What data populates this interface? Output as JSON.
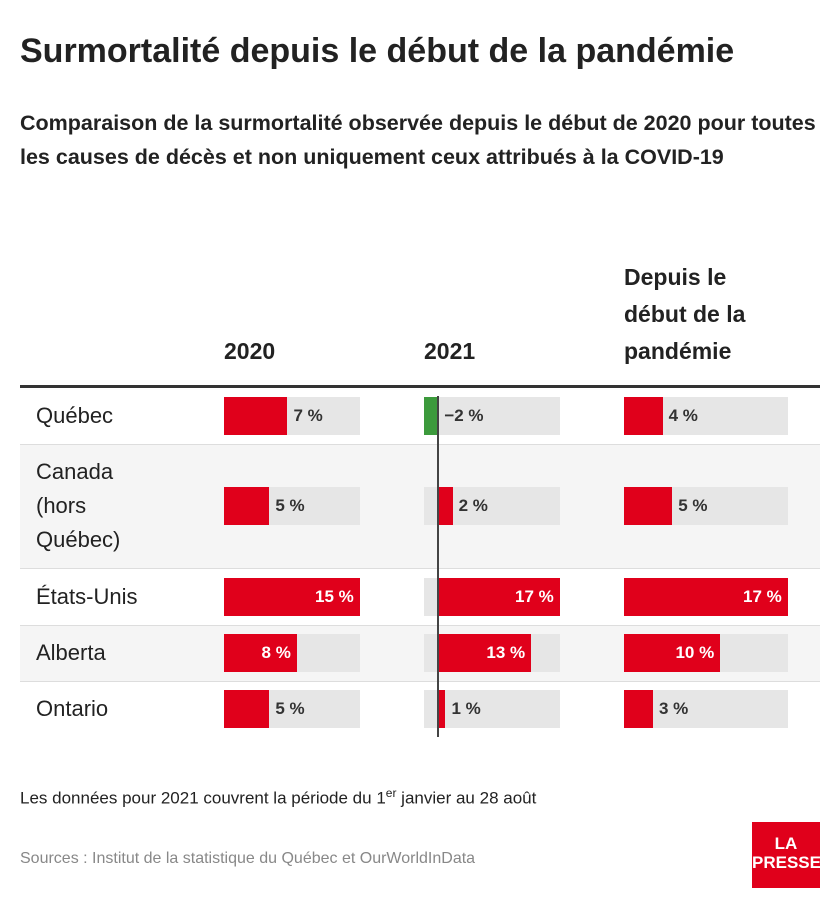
{
  "chart_data": {
    "type": "bar",
    "title": "Surmortalité depuis le début de la pandémie",
    "subtitle": "Comparaison de la surmortalité observée depuis le début de 2020 pour toutes les causes de décès et non uniquement ceux attribués à la COVID-19",
    "categories": [
      "Québec",
      "Canada (hors Québec)",
      "États-Unis",
      "Alberta",
      "Ontario"
    ],
    "negative_color": "#3c9a3c",
    "series": [
      {
        "name": "2020",
        "color": "#e0001b",
        "xlim": [
          0,
          15
        ],
        "values": [
          7,
          5,
          15,
          8,
          5
        ],
        "value_labels": [
          "7 %",
          "5 %",
          "15 %",
          "8 %",
          "5 %"
        ]
      },
      {
        "name": "2021",
        "color": "#e0001b",
        "xlim": [
          -2,
          17
        ],
        "values": [
          -2,
          2,
          17,
          13,
          1
        ],
        "value_labels": [
          "−2 %",
          "2 %",
          "17 %",
          "13 %",
          "1 %"
        ]
      },
      {
        "name": "Depuis le début de la pandémie",
        "color": "#e0001b",
        "xlim": [
          0,
          17
        ],
        "values": [
          4,
          5,
          17,
          10,
          3
        ],
        "value_labels": [
          "4 %",
          "5 %",
          "17 %",
          "10 %",
          "3 %"
        ]
      }
    ],
    "note": [
      "Les données pour 2021 couvrent la période du 1",
      "er",
      " janvier au 28 août"
    ],
    "source": "Sources : Institut de la statistique du Québec et OurWorldInData",
    "logo": [
      "LA",
      "PRESSE"
    ]
  }
}
